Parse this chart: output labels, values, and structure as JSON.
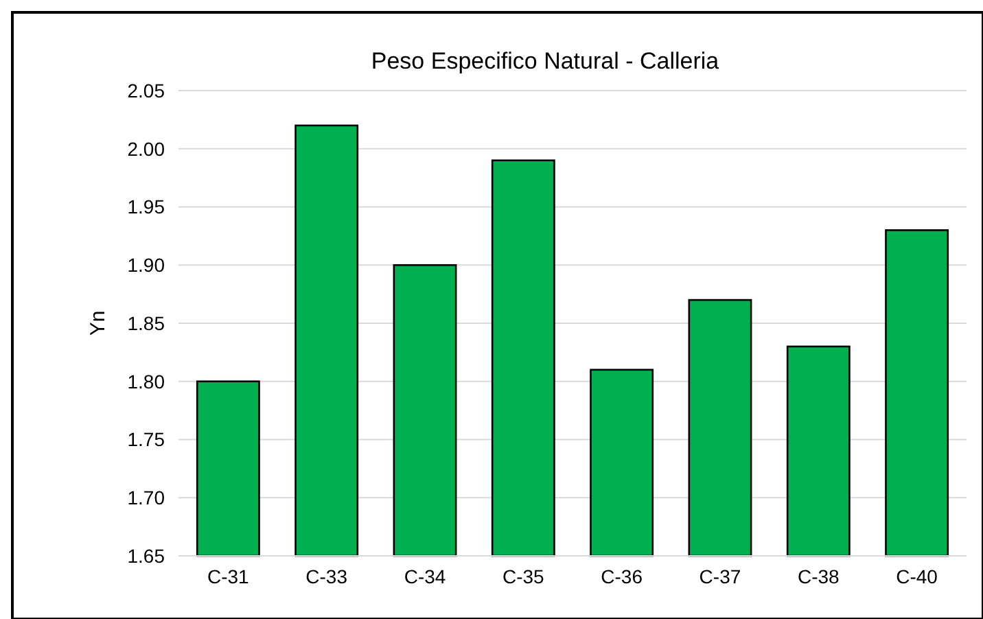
{
  "chart_data": {
    "type": "bar",
    "title": "Peso Especifico Natural - Calleria",
    "ylabel": "Yn",
    "categories": [
      "C-31",
      "C-33",
      "C-34",
      "C-35",
      "C-36",
      "C-37",
      "C-38",
      "C-40"
    ],
    "values": [
      1.8,
      2.02,
      1.9,
      1.99,
      1.81,
      1.87,
      1.83,
      1.93
    ],
    "color": "#00b050",
    "ylim": [
      1.65,
      2.05
    ],
    "yticks": [
      {
        "value": 1.65,
        "label": "1.65"
      },
      {
        "value": 1.7,
        "label": "1.70"
      },
      {
        "value": 1.75,
        "label": "1.75"
      },
      {
        "value": 1.8,
        "label": "1.80"
      },
      {
        "value": 1.85,
        "label": "1.85"
      },
      {
        "value": 1.9,
        "label": "1.90"
      },
      {
        "value": 1.95,
        "label": "1.95"
      },
      {
        "value": 2.0,
        "label": "2.00"
      },
      {
        "value": 2.05,
        "label": "2.05"
      }
    ],
    "grid": "y"
  }
}
